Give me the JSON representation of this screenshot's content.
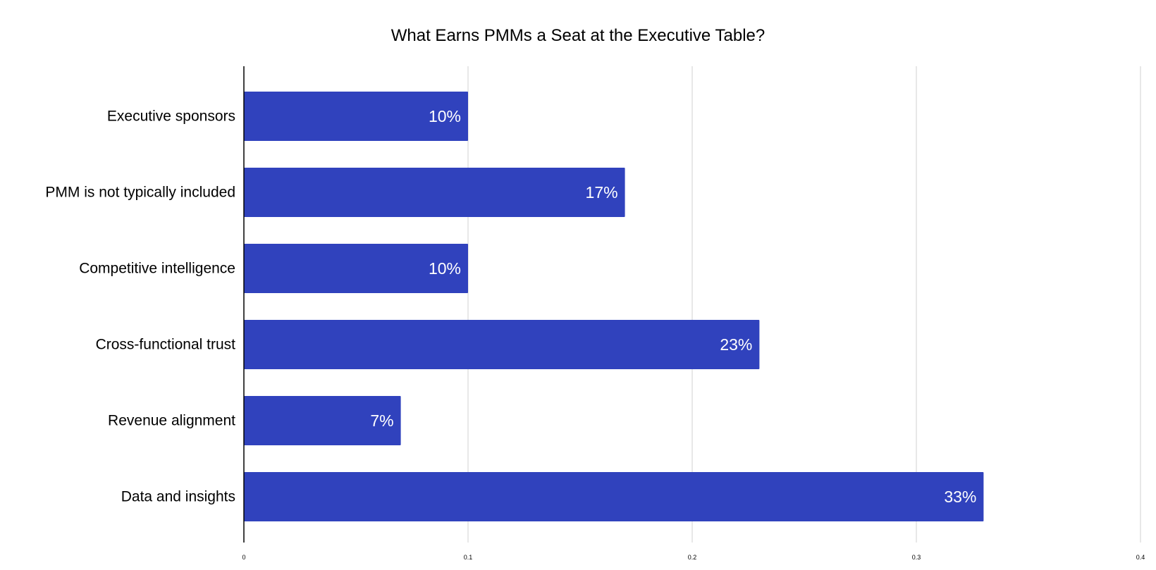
{
  "chart_data": {
    "type": "bar",
    "orientation": "horizontal",
    "title": "What Earns PMMs a Seat at the Executive Table?",
    "xlabel": "",
    "ylabel": "",
    "xlim": [
      0,
      0.4
    ],
    "x_ticks": [
      0,
      0.1,
      0.2,
      0.3,
      0.4
    ],
    "x_tick_labels": [
      "0",
      "0.1",
      "0.2",
      "0.3",
      "0.4"
    ],
    "grid": true,
    "legend": "none",
    "categories": [
      "Executive sponsors",
      "PMM is not typically included",
      "Competitive intelligence",
      "Cross-functional trust",
      "Revenue alignment",
      "Data and insights"
    ],
    "values": [
      0.1,
      0.17,
      0.1,
      0.23,
      0.07,
      0.33
    ],
    "data_labels": [
      "10%",
      "17%",
      "10%",
      "23%",
      "7%",
      "33%"
    ],
    "colors": {
      "bar": "#3042BD",
      "gridline": "#D0D0D0",
      "axis": "#000000",
      "text": "#000000",
      "data_label": "#FFFFFF"
    }
  }
}
